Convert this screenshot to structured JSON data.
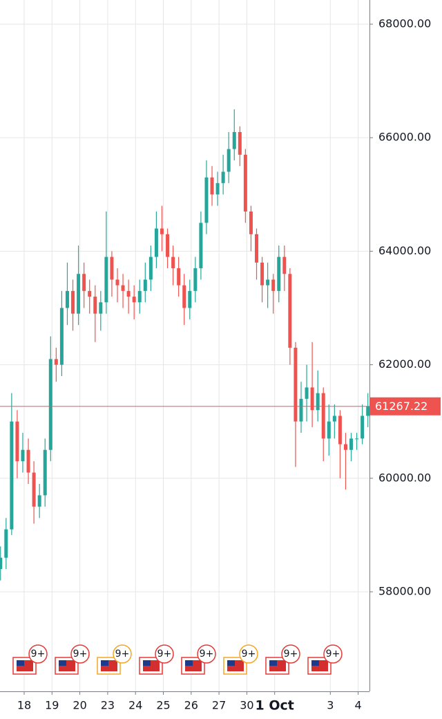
{
  "chart_data": {
    "type": "candlestick",
    "x": [
      -0.85,
      -0.65,
      -0.45,
      -0.25,
      -0.05,
      0.15,
      0.35,
      0.55,
      0.75,
      0.95,
      1.15,
      1.35,
      1.55,
      1.75,
      1.95,
      2.15,
      2.35,
      2.55,
      2.75,
      2.95,
      3.15,
      3.35,
      3.55,
      3.75,
      3.95,
      4.15,
      4.35,
      4.55,
      4.75,
      4.95,
      5.15,
      5.35,
      5.55,
      5.75,
      5.95,
      6.15,
      6.35,
      6.55,
      6.75,
      6.95,
      7.15,
      7.35,
      7.55,
      7.75,
      7.95,
      8.15,
      8.35,
      8.55,
      8.75,
      8.95,
      9.15,
      9.35,
      9.55,
      9.75,
      9.95,
      10.15,
      10.35,
      10.55,
      10.75,
      10.95,
      11.15,
      11.35,
      11.55,
      11.75,
      11.95,
      12.15,
      12.35
    ],
    "open": [
      58400,
      58600,
      59100,
      61000,
      60300,
      60500,
      60100,
      59500,
      59700,
      60500,
      62100,
      62000,
      63000,
      63300,
      62900,
      63600,
      63300,
      63200,
      62900,
      63100,
      63900,
      63500,
      63400,
      63300,
      63200,
      63100,
      63300,
      63500,
      63900,
      64400,
      64300,
      63900,
      63700,
      63400,
      63000,
      63300,
      63700,
      64500,
      65300,
      65000,
      65200,
      65400,
      65800,
      66100,
      65700,
      64700,
      64300,
      63800,
      63400,
      63500,
      63300,
      63900,
      63600,
      62300,
      61000,
      61400,
      61600,
      61200,
      61500,
      60700,
      61000,
      61100,
      60600,
      60500,
      60700,
      60700,
      61100
    ],
    "high": [
      58800,
      59300,
      61500,
      61200,
      60800,
      60700,
      60300,
      59900,
      60700,
      62500,
      62300,
      63300,
      63800,
      63500,
      64100,
      63800,
      63500,
      63400,
      63300,
      64700,
      64000,
      63700,
      63600,
      63500,
      63400,
      63500,
      63800,
      64100,
      64700,
      64800,
      64400,
      64100,
      63900,
      63600,
      63500,
      63900,
      64700,
      65600,
      65500,
      65400,
      65700,
      66100,
      66500,
      66200,
      65800,
      64800,
      64400,
      63900,
      63800,
      63600,
      64100,
      64100,
      63700,
      62400,
      61700,
      62000,
      62400,
      61900,
      61600,
      61300,
      61300,
      61200,
      60800,
      60800,
      60800,
      61300,
      61500
    ],
    "low": [
      58200,
      58400,
      59000,
      60000,
      60100,
      59900,
      59200,
      59300,
      59500,
      60300,
      61700,
      61800,
      62700,
      62600,
      62700,
      63000,
      62900,
      62400,
      62600,
      62900,
      63200,
      63100,
      63000,
      62900,
      62800,
      62900,
      63100,
      63300,
      63700,
      64000,
      63700,
      63400,
      63200,
      62700,
      62800,
      63100,
      63500,
      64300,
      64800,
      64800,
      65000,
      65200,
      65600,
      65500,
      64500,
      64000,
      63500,
      63100,
      63000,
      62900,
      63100,
      63300,
      62000,
      60200,
      60800,
      61000,
      60900,
      61000,
      60300,
      60400,
      60700,
      60000,
      59800,
      60300,
      60500,
      60600,
      60900
    ],
    "close": [
      58600,
      59100,
      61000,
      60300,
      60500,
      60100,
      59500,
      59700,
      60500,
      62100,
      62000,
      63000,
      63300,
      62900,
      63600,
      63300,
      63200,
      62900,
      63100,
      63900,
      63500,
      63400,
      63300,
      63200,
      63100,
      63300,
      63500,
      63900,
      64400,
      64300,
      63900,
      63700,
      63400,
      63000,
      63300,
      63700,
      64500,
      65300,
      65000,
      65200,
      65400,
      65800,
      66100,
      65700,
      64700,
      64300,
      63800,
      63400,
      63500,
      63300,
      63900,
      63600,
      62300,
      61000,
      61400,
      61600,
      61200,
      61500,
      60700,
      61000,
      61100,
      60600,
      60500,
      60700,
      60700,
      61100,
      61267.22
    ],
    "up_color": "#26a69a",
    "down_color": "#ef5350",
    "xlim": [
      -0.87,
      12.41
    ],
    "xticks": [
      {
        "value": 0,
        "label": "18"
      },
      {
        "value": 1,
        "label": "19"
      },
      {
        "value": 2,
        "label": "20"
      },
      {
        "value": 3,
        "label": "23"
      },
      {
        "value": 4,
        "label": "24"
      },
      {
        "value": 5,
        "label": "25"
      },
      {
        "value": 6,
        "label": "26"
      },
      {
        "value": 7,
        "label": "27"
      },
      {
        "value": 8,
        "label": "30"
      },
      {
        "value": 9,
        "label": "1 Oct"
      },
      {
        "value": 11,
        "label": "3"
      },
      {
        "value": 12,
        "label": "4"
      }
    ],
    "ylim": [
      56246,
      68426
    ],
    "yticks": [
      {
        "value": 58000,
        "label": "58000.00"
      },
      {
        "value": 60000,
        "label": "60000.00"
      },
      {
        "value": 62000,
        "label": "62000.00"
      },
      {
        "value": 64000,
        "label": "64000.00"
      },
      {
        "value": 66000,
        "label": "66000.00"
      },
      {
        "value": 68000,
        "label": "68000.00"
      }
    ],
    "grid": true,
    "last_price": 61267.22,
    "events": [
      {
        "label": "9+",
        "color": "#e53935"
      },
      {
        "label": "9+",
        "color": "#e53935"
      },
      {
        "label": "9+",
        "color": "#f5a623"
      },
      {
        "label": "9+",
        "color": "#e53935"
      },
      {
        "label": "9+",
        "color": "#e53935"
      },
      {
        "label": "9+",
        "color": "#f5a623"
      },
      {
        "label": "9+",
        "color": "#e53935"
      },
      {
        "label": "9+",
        "color": "#e53935"
      }
    ]
  }
}
